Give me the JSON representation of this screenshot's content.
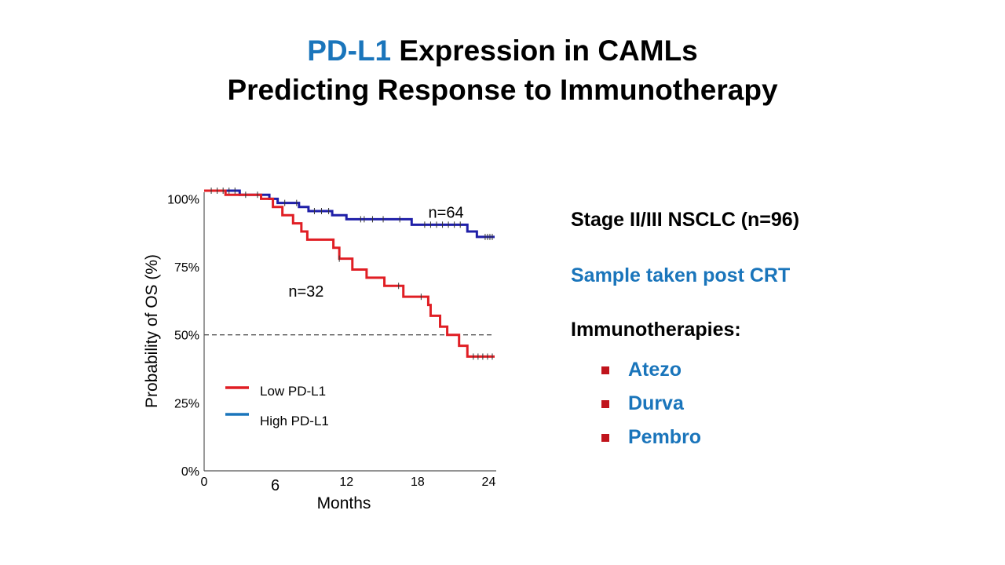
{
  "slide": {
    "title_highlight": "PD-L1",
    "title_rest": " Expression in CAMLs",
    "title_line2": "Predicting Response to Immunotherapy"
  },
  "side_panel": {
    "stage": "Stage II/III NSCLC (n=96)",
    "sample": "Sample taken post CRT",
    "immuno_heading": "Immunotherapies:",
    "therapies": [
      "Atezo",
      "Durva",
      "Pembro"
    ],
    "bullet_color": "#c0141c"
  },
  "chart_data": {
    "type": "line",
    "title": "",
    "xlabel": "Months",
    "ylabel": "Probability of OS (%)",
    "xlim": [
      0,
      24.5
    ],
    "ylim": [
      0,
      103
    ],
    "x_ticks": [
      0,
      6,
      12,
      18,
      24
    ],
    "y_ticks": [
      {
        "value": 0,
        "label": "0%"
      },
      {
        "value": 25,
        "label": "25%"
      },
      {
        "value": 50,
        "label": "50%"
      },
      {
        "value": 75,
        "label": "75%"
      },
      {
        "value": 100,
        "label": "100%"
      }
    ],
    "reference_line": {
      "y": 50,
      "style": "dashed"
    },
    "series": [
      {
        "name": "High PD-L1",
        "color": "#1f1fa8",
        "legend_color": "#1a75bb",
        "n_label": "n=64",
        "label_at": {
          "x": 20.4,
          "y": 93
        },
        "x": [
          0,
          3,
          5.5,
          6.2,
          8,
          8.8,
          10.8,
          12,
          17.5,
          22.2,
          23
        ],
        "y": [
          103,
          101.5,
          100,
          98.5,
          97,
          95.5,
          94,
          92.5,
          90.5,
          88,
          86
        ],
        "end_x": 24.5,
        "censors_x": [
          0.6,
          1.1,
          1.6,
          2.1,
          2.6,
          3.5,
          4.5,
          6.8,
          7.8,
          9.3,
          9.9,
          10.5,
          13.2,
          13.5,
          14.2,
          15.1,
          16.5,
          18.6,
          19.1,
          19.6,
          20.1,
          20.6,
          21.1,
          21.6,
          23.7,
          23.9,
          24.1,
          24.3
        ]
      },
      {
        "name": "Low PD-L1",
        "color": "#e01e24",
        "legend_color": "#e01e24",
        "n_label": "n=32",
        "label_at": {
          "x": 8.6,
          "y": 64
        },
        "x": [
          0,
          1.8,
          4.8,
          5.8,
          6.6,
          7.5,
          8.2,
          8.7,
          10.9,
          11.4,
          12.5,
          13.7,
          15.2,
          16.8,
          18.9,
          19.1,
          19.9,
          20.5,
          21.5,
          22.2
        ],
        "y": [
          103,
          101.5,
          100,
          97,
          94,
          91,
          88,
          85,
          82,
          78,
          74,
          71,
          68,
          64,
          61,
          57,
          53,
          50,
          46,
          42
        ],
        "end_x": 24.5,
        "censors_x": [
          11.4,
          16.4,
          18.3,
          22.7,
          23.1,
          23.5,
          23.9,
          24.3
        ]
      }
    ],
    "legend": {
      "position": "lower-left",
      "order": [
        "Low PD-L1",
        "High PD-L1"
      ]
    }
  }
}
